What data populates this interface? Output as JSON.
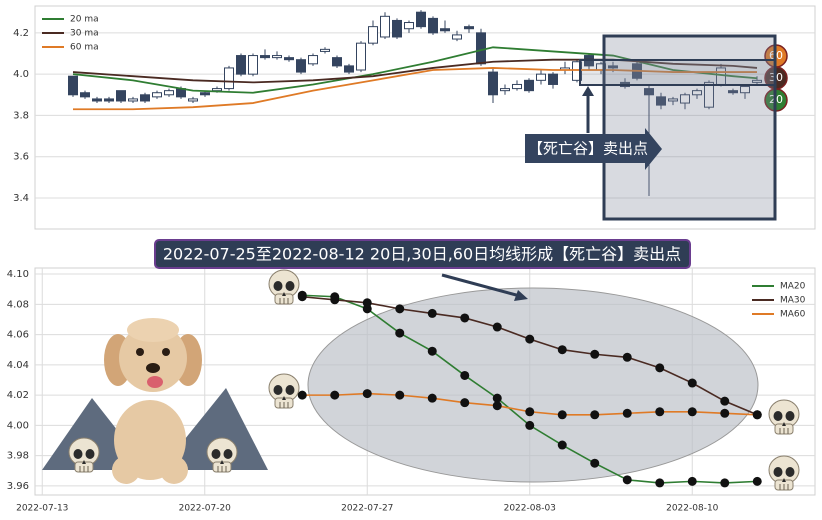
{
  "chart_data": [
    {
      "type": "candlestick",
      "color": "#34445f",
      "open": [
        3.99,
        3.91,
        3.88,
        3.88,
        3.92,
        3.87,
        3.9,
        3.89,
        3.9,
        3.93,
        3.87,
        3.91,
        3.92,
        3.93,
        4.09,
        4.0,
        4.09,
        4.08,
        4.08,
        4.07,
        4.05,
        4.11,
        4.08,
        4.04,
        4.02,
        4.15,
        4.18,
        4.26,
        4.22,
        4.3,
        4.27,
        4.22,
        4.17,
        4.23,
        4.2,
        4.01,
        3.92,
        3.93,
        3.97,
        3.97,
        4.0,
        4.02,
        3.97,
        4.09,
        4.02,
        4.04,
        3.96,
        4.05,
        3.93,
        3.89,
        3.87,
        3.86,
        3.9,
        3.84,
        3.95,
        3.92,
        3.91,
        3.96
      ],
      "high": [
        3.99,
        3.92,
        3.89,
        3.89,
        3.92,
        3.89,
        3.91,
        3.92,
        3.93,
        3.94,
        3.89,
        3.92,
        3.94,
        4.04,
        4.1,
        4.1,
        4.12,
        4.11,
        4.09,
        4.08,
        4.1,
        4.13,
        4.09,
        4.05,
        4.16,
        4.26,
        4.3,
        4.27,
        4.26,
        4.31,
        4.28,
        4.26,
        4.21,
        4.24,
        4.22,
        4.03,
        3.95,
        3.97,
        3.98,
        4.02,
        4.01,
        4.06,
        4.07,
        4.1,
        4.06,
        4.06,
        3.98,
        4.06,
        3.95,
        3.91,
        3.89,
        3.91,
        3.93,
        3.97,
        4.05,
        3.93,
        3.95,
        3.99
      ],
      "low": [
        3.89,
        3.88,
        3.86,
        3.86,
        3.86,
        3.86,
        3.86,
        3.88,
        3.89,
        3.88,
        3.86,
        3.89,
        3.91,
        3.92,
        3.99,
        3.99,
        4.07,
        4.07,
        4.06,
        4.0,
        4.04,
        4.1,
        4.03,
        4.0,
        4.01,
        4.14,
        4.17,
        4.17,
        4.2,
        4.22,
        4.19,
        4.2,
        4.16,
        4.2,
        4.04,
        3.86,
        3.9,
        3.92,
        3.91,
        3.95,
        3.93,
        4.0,
        3.96,
        4.02,
        4.0,
        4.01,
        3.93,
        3.97,
        3.41,
        3.83,
        3.85,
        3.83,
        3.88,
        3.83,
        3.94,
        3.9,
        3.88,
        3.95
      ],
      "close": [
        3.9,
        3.89,
        3.87,
        3.87,
        3.87,
        3.88,
        3.87,
        3.91,
        3.92,
        3.89,
        3.88,
        3.9,
        3.93,
        4.03,
        4.0,
        4.09,
        4.08,
        4.09,
        4.07,
        4.01,
        4.09,
        4.12,
        4.04,
        4.01,
        4.15,
        4.23,
        4.28,
        4.18,
        4.25,
        4.23,
        4.2,
        4.21,
        4.19,
        4.22,
        4.05,
        3.9,
        3.93,
        3.95,
        3.92,
        4.0,
        3.95,
        4.03,
        4.06,
        4.04,
        4.05,
        4.03,
        3.94,
        3.98,
        3.9,
        3.85,
        3.88,
        3.9,
        3.92,
        3.96,
        4.03,
        3.91,
        3.94,
        3.97
      ],
      "series": [
        {
          "name": "20 ma",
          "color": "#2f7d32",
          "x": [
            0,
            5,
            10,
            15,
            20,
            25,
            30,
            35,
            40,
            45,
            50,
            55,
            57
          ],
          "values": [
            4.0,
            3.97,
            3.92,
            3.91,
            3.95,
            4.0,
            4.06,
            4.13,
            4.11,
            4.09,
            4.02,
            3.99,
            3.98
          ]
        },
        {
          "name": "30 ma",
          "color": "#4a2a22",
          "x": [
            0,
            5,
            10,
            15,
            20,
            25,
            30,
            35,
            40,
            45,
            50,
            55,
            57
          ],
          "values": [
            4.01,
            3.99,
            3.97,
            3.96,
            3.97,
            3.99,
            4.03,
            4.06,
            4.07,
            4.07,
            4.05,
            4.04,
            4.03
          ]
        },
        {
          "name": "60 ma",
          "color": "#df7a26",
          "x": [
            0,
            5,
            10,
            15,
            20,
            25,
            30,
            35,
            40,
            45,
            50,
            55,
            57
          ],
          "values": [
            3.83,
            3.83,
            3.84,
            3.86,
            3.92,
            3.97,
            4.02,
            4.03,
            4.02,
            4.02,
            4.01,
            4.01,
            4.01
          ]
        }
      ],
      "ylim": [
        3.25,
        4.33
      ],
      "yticks": [
        3.4,
        3.6,
        3.8,
        {
          "value": 4,
          "label": "4.0"
        },
        4.2
      ],
      "grid": true,
      "legend": "upper left",
      "annotation": "【死亡谷】卖出点",
      "badges": [
        {
          "label": "60",
          "color": "#df7a26"
        },
        {
          "label": "30",
          "color": "#4a2a22"
        },
        {
          "label": "20",
          "color": "#2f7d32"
        }
      ]
    },
    {
      "type": "line",
      "title": "2022-07-25至2022-08-12 20日,30日,60日均线形成【死亡谷】卖出点",
      "categories": [
        "2022-07-13",
        null,
        null,
        null,
        null,
        "2022-07-20",
        null,
        null,
        null,
        null,
        "2022-07-27",
        null,
        null,
        null,
        null,
        "2022-08-03",
        null,
        null,
        null,
        null,
        "2022-08-10",
        null,
        null,
        null
      ],
      "series": [
        {
          "name": "MA20",
          "color": "#2f7d32",
          "values": [
            null,
            null,
            null,
            null,
            null,
            null,
            null,
            null,
            4.086,
            4.085,
            4.077,
            4.061,
            4.049,
            4.033,
            4.018,
            4.0,
            3.987,
            3.975,
            3.964,
            3.962,
            3.963,
            3.962,
            3.963,
            null
          ]
        },
        {
          "name": "MA30",
          "color": "#4a2a22",
          "values": [
            null,
            null,
            null,
            null,
            null,
            null,
            null,
            null,
            4.085,
            4.083,
            4.081,
            4.077,
            4.074,
            4.071,
            4.065,
            4.057,
            4.05,
            4.047,
            4.045,
            4.038,
            4.028,
            4.016,
            4.007,
            null
          ]
        },
        {
          "name": "MA60",
          "color": "#df7a26",
          "values": [
            null,
            null,
            null,
            null,
            null,
            null,
            null,
            null,
            4.02,
            4.02,
            4.021,
            4.02,
            4.018,
            4.015,
            4.013,
            4.009,
            4.007,
            4.007,
            4.008,
            4.009,
            4.009,
            4.008,
            4.007,
            null
          ]
        }
      ],
      "ylim": [
        3.954,
        4.104
      ],
      "yticks": [
        3.96,
        3.98,
        {
          "value": 4,
          "label": "4.00"
        },
        4.02,
        4.04,
        4.06,
        4.08,
        {
          "value": 4.1,
          "label": "4.10"
        }
      ],
      "grid": true,
      "legend": "upper right"
    }
  ]
}
